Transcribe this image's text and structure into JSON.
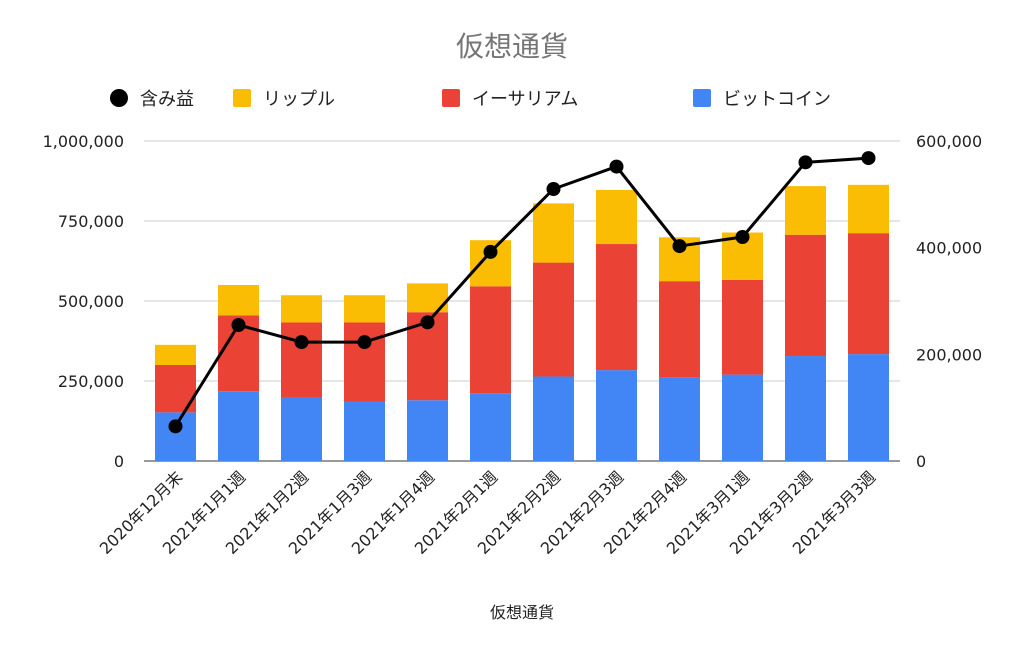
{
  "chart_data": {
    "type": "bar",
    "stacked": true,
    "title": "仮想通貨",
    "xlabel": "仮想通貨",
    "categories": [
      "2020年12月末",
      "2021年1月1週",
      "2021年1月2週",
      "2021年1月3週",
      "2021年1月4週",
      "2021年2月1週",
      "2021年2月2週",
      "2021年2月3週",
      "2021年2月4週",
      "2021年3月1週",
      "2021年3月2週",
      "2021年3月3週"
    ],
    "series": [
      {
        "name": "ビットコイン",
        "color": "#4285F4",
        "axis": "left",
        "values": [
          152000,
          218000,
          200000,
          186000,
          190000,
          212000,
          264000,
          284000,
          260000,
          270000,
          328000,
          334000
        ]
      },
      {
        "name": "イーサリアム",
        "color": "#EA4335",
        "axis": "left",
        "values": [
          148000,
          237000,
          233000,
          247000,
          275000,
          334000,
          356000,
          394000,
          302000,
          296000,
          379000,
          378000
        ]
      },
      {
        "name": "リップル",
        "color": "#FBBC04",
        "axis": "left",
        "values": [
          63000,
          95000,
          85000,
          85000,
          90000,
          144000,
          185000,
          169000,
          137000,
          148000,
          152000,
          151000
        ]
      },
      {
        "name": "含み益",
        "color": "#000000",
        "type": "line",
        "axis": "right",
        "values": [
          65000,
          255000,
          223000,
          223000,
          260000,
          392000,
          510000,
          552000,
          403000,
          420000,
          560000,
          568000
        ]
      }
    ],
    "legend_order": [
      "含み益",
      "リップル",
      "イーサリアム",
      "ビットコイン"
    ],
    "legend_position": "top",
    "y_left": {
      "min": 0,
      "max": 1000000,
      "ticks": [
        "0",
        "250,000",
        "500,000",
        "750,000",
        "1,000,000"
      ]
    },
    "y_right": {
      "min": 0,
      "max": 600000,
      "ticks": [
        "0",
        "200,000",
        "400,000",
        "600,000"
      ]
    },
    "grid": true
  }
}
